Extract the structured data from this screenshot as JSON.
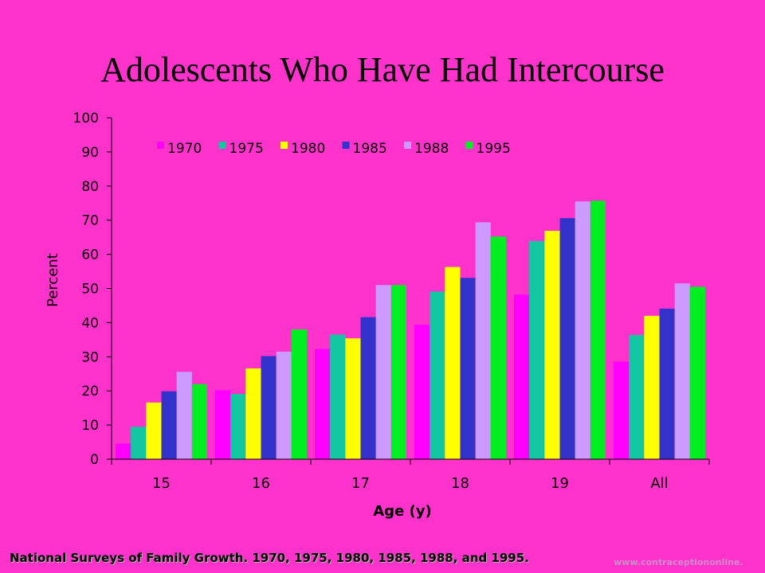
{
  "title": "Adolescents Who Have Had Intercourse",
  "footer": {
    "source": "National Surveys of Family Growth. 1970, 1975, 1980, 1985, 1988, and 1995.",
    "url": "www.contraceptiononline."
  },
  "chart_data": {
    "type": "bar",
    "title": "Adolescents Who Have Had Intercourse",
    "xlabel": "Age (y)",
    "ylabel": "Percent",
    "ylim": [
      0,
      100
    ],
    "yticks": [
      0,
      10,
      20,
      30,
      40,
      50,
      60,
      70,
      80,
      90,
      100
    ],
    "grid": false,
    "legend": "top",
    "categories": [
      "15",
      "16",
      "17",
      "18",
      "19",
      "All"
    ],
    "series": [
      {
        "name": "1970",
        "color": "#ff00ff",
        "values": [
          4.6,
          20.2,
          32.3,
          39.4,
          48.2,
          28.6
        ]
      },
      {
        "name": "1975",
        "color": "#11c6a0",
        "values": [
          9.5,
          19.1,
          36.5,
          49.1,
          63.9,
          36.4
        ]
      },
      {
        "name": "1980",
        "color": "#ffff00",
        "values": [
          16.6,
          26.6,
          35.4,
          56.3,
          66.9,
          42.0
        ]
      },
      {
        "name": "1985",
        "color": "#3333cc",
        "values": [
          19.9,
          30.2,
          41.6,
          53.1,
          70.6,
          44.1
        ]
      },
      {
        "name": "1988",
        "color": "#cc99ff",
        "values": [
          25.6,
          31.5,
          51.0,
          69.4,
          75.5,
          51.5
        ]
      },
      {
        "name": "1995",
        "color": "#00ee22",
        "values": [
          22.0,
          38.0,
          51.0,
          65.2,
          75.7,
          50.5
        ]
      }
    ]
  }
}
